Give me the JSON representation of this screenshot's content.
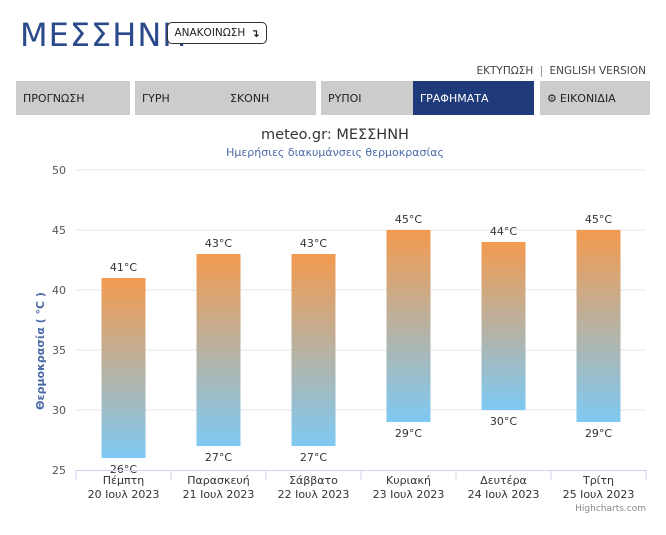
{
  "header": {
    "city": "ΜΕΣΣΗΝΗ",
    "announce_label": "ΑΝΑΚΟΙΝΩΣΗ",
    "announce_icon": "arrow-down-icon",
    "print_label": "ΕΚΤΥΠΩΣΗ",
    "separator": "|",
    "english_label": "ENGLISH VERSION"
  },
  "tabs": [
    {
      "label": "ΠΡΟΓΝΩΣΗ",
      "active": false
    },
    {
      "label": "ΓΥΡΗ",
      "active": false
    },
    {
      "label": "ΣΚΟΝΗ",
      "active": false
    },
    {
      "label": "ΡΥΠΟΙ",
      "active": false
    },
    {
      "label": "ΓΡΑΦΗΜΑΤΑ",
      "active": true
    },
    {
      "label": "ΕΙΚΟΝΙΔΙΑ",
      "active": false,
      "icon": "gear-icon"
    }
  ],
  "colors": {
    "accent": "#1f3a7a",
    "title": "#2b4a8b",
    "bar_top": "#f39a4f",
    "bar_bottom": "#7ec9f3",
    "tab_bg": "#cccccc"
  },
  "chart_data": {
    "type": "bar",
    "subtype": "columnrange",
    "title": "meteo.gr: ΜΕΣΣΗΝΗ",
    "subtitle": "Ημερήσιες διακυμάνσεις θερμοκρασίας",
    "ylabel": "Θερμοκρασία ( °C )",
    "ylim": [
      25,
      50
    ],
    "yticks": [
      25,
      30,
      35,
      40,
      45,
      50
    ],
    "grid": true,
    "categories": [
      {
        "day": "Πέμπτη",
        "date": "20 Ιουλ 2023"
      },
      {
        "day": "Παρασκευή",
        "date": "21 Ιουλ 2023"
      },
      {
        "day": "Σάββατο",
        "date": "22 Ιουλ 2023"
      },
      {
        "day": "Κυριακή",
        "date": "23 Ιουλ 2023"
      },
      {
        "day": "Δευτέρα",
        "date": "24 Ιουλ 2023"
      },
      {
        "day": "Τρίτη",
        "date": "25 Ιουλ 2023"
      }
    ],
    "low": [
      26,
      27,
      27,
      29,
      30,
      29
    ],
    "high": [
      41,
      43,
      43,
      45,
      44,
      45
    ],
    "unit": "°C",
    "credit": "Highcharts.com"
  }
}
